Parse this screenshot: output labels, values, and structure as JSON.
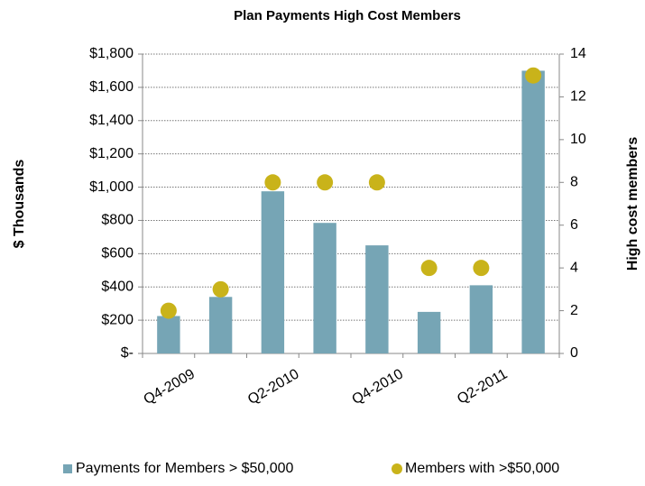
{
  "chart_data": {
    "type": "bar",
    "title": "Plan Payments High Cost Members",
    "y_label": "$ Thousands",
    "y2_label": "High cost members",
    "categories": [
      "Q4-2009",
      null,
      "Q2-2010",
      null,
      "Q4-2010",
      null,
      "Q2-2011",
      null
    ],
    "series": [
      {
        "name": "Payments for Members > $50,000",
        "color": "#76a5b5",
        "type": "bar",
        "values": [
          225,
          340,
          975,
          785,
          650,
          250,
          410,
          1700
        ]
      },
      {
        "name": "Members with >$50,000",
        "color": "#c9b31a",
        "type": "scatter",
        "axis": "y2",
        "values": [
          2,
          3,
          8,
          8,
          8,
          4,
          4,
          13
        ]
      }
    ],
    "ylim": [
      0,
      1800
    ],
    "yticks": [
      {
        "value": 0,
        "label": "$-"
      },
      {
        "value": 200,
        "label": "$200"
      },
      {
        "value": 400,
        "label": "$400"
      },
      {
        "value": 600,
        "label": "$600"
      },
      {
        "value": 800,
        "label": "$800"
      },
      {
        "value": 1000,
        "label": "$1,000"
      },
      {
        "value": 1200,
        "label": "$1,200"
      },
      {
        "value": 1400,
        "label": "$1,400"
      },
      {
        "value": 1600,
        "label": "$1,600"
      },
      {
        "value": 1800,
        "label": "$1,800"
      }
    ],
    "y2lim": [
      0,
      14
    ],
    "y2ticks": [
      0,
      2,
      4,
      6,
      8,
      10,
      12,
      14
    ],
    "grid": true,
    "legend": "bottom"
  }
}
